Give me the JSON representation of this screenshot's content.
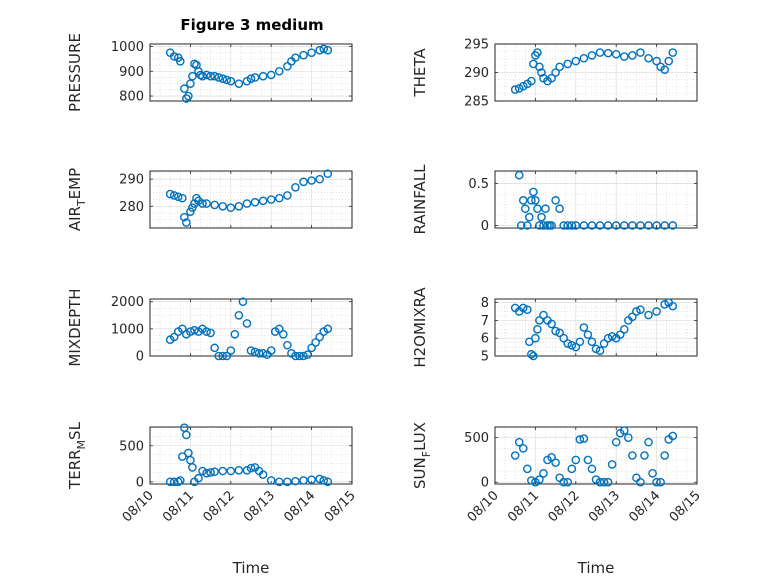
{
  "figure": {
    "title": "Figure 3 medium"
  },
  "chart_data": [
    {
      "type": "scatter",
      "ylabel": "PRESSURE",
      "ylim": [
        780,
        1010
      ],
      "yticks": [
        800,
        900,
        1000
      ],
      "xlim": [
        0,
        5
      ],
      "xticks": [],
      "color": "#0072bd",
      "x": [
        0.5,
        0.6,
        0.7,
        0.75,
        0.85,
        0.9,
        0.95,
        1.0,
        1.05,
        1.1,
        1.15,
        1.2,
        1.25,
        1.3,
        1.4,
        1.5,
        1.6,
        1.7,
        1.8,
        1.9,
        2.0,
        2.2,
        2.4,
        2.5,
        2.6,
        2.8,
        3.0,
        3.2,
        3.4,
        3.5,
        3.6,
        3.8,
        4.0,
        4.2,
        4.3,
        4.4
      ],
      "y": [
        975,
        960,
        955,
        940,
        830,
        790,
        800,
        850,
        880,
        930,
        925,
        900,
        885,
        880,
        885,
        880,
        880,
        875,
        870,
        865,
        860,
        850,
        860,
        870,
        875,
        880,
        885,
        900,
        920,
        940,
        955,
        965,
        975,
        985,
        990,
        985
      ]
    },
    {
      "type": "scatter",
      "ylabel": "THETA",
      "ylim": [
        285,
        295
      ],
      "yticks": [
        285,
        290,
        295
      ],
      "xlim": [
        0,
        5
      ],
      "xticks": [],
      "color": "#0072bd",
      "x": [
        0.5,
        0.6,
        0.7,
        0.8,
        0.9,
        0.95,
        1.0,
        1.05,
        1.1,
        1.15,
        1.2,
        1.3,
        1.4,
        1.5,
        1.6,
        1.8,
        2.0,
        2.2,
        2.4,
        2.6,
        2.8,
        3.0,
        3.2,
        3.4,
        3.6,
        3.8,
        4.0,
        4.1,
        4.2,
        4.3,
        4.4
      ],
      "y": [
        287,
        287.2,
        287.6,
        288,
        288.5,
        291.5,
        293,
        293.5,
        291,
        290,
        289,
        288.5,
        289,
        290,
        291,
        291.5,
        292,
        292.5,
        293,
        293.5,
        293.4,
        293.2,
        292.8,
        293,
        293.5,
        292.5,
        292,
        291,
        290.5,
        292,
        293.5
      ]
    },
    {
      "type": "scatter",
      "ylabel": "AIR_TEMP",
      "ylim": [
        272,
        293
      ],
      "yticks": [
        280,
        290
      ],
      "xlim": [
        0,
        5
      ],
      "xticks": [],
      "color": "#0072bd",
      "x": [
        0.5,
        0.6,
        0.7,
        0.8,
        0.85,
        0.9,
        1.0,
        1.05,
        1.1,
        1.15,
        1.2,
        1.3,
        1.4,
        1.6,
        1.8,
        2.0,
        2.2,
        2.4,
        2.6,
        2.8,
        3.0,
        3.2,
        3.4,
        3.6,
        3.8,
        4.0,
        4.2,
        4.4
      ],
      "y": [
        284.5,
        284,
        283.5,
        283,
        276,
        274,
        278,
        279.5,
        281,
        283,
        282,
        281,
        281,
        280.5,
        280,
        279.5,
        280,
        281,
        281.5,
        282,
        282.5,
        283,
        284,
        287,
        289,
        289.5,
        290,
        292
      ]
    },
    {
      "type": "scatter",
      "ylabel": "RAINFALL",
      "ylim": [
        -0.03,
        0.65
      ],
      "yticks": [
        0,
        0.5
      ],
      "xlim": [
        0,
        5
      ],
      "xticks": [],
      "color": "#0072bd",
      "x": [
        0.6,
        0.65,
        0.7,
        0.75,
        0.8,
        0.85,
        0.9,
        0.95,
        1.0,
        1.05,
        1.1,
        1.15,
        1.2,
        1.25,
        1.3,
        1.35,
        1.4,
        1.5,
        1.6,
        1.7,
        1.8,
        1.9,
        2.0,
        2.2,
        2.4,
        2.6,
        2.8,
        3.0,
        3.2,
        3.4,
        3.6,
        3.8,
        4.0,
        4.2,
        4.4
      ],
      "y": [
        0.6,
        0,
        0.3,
        0.2,
        0,
        0.1,
        0.3,
        0.4,
        0.3,
        0.2,
        0,
        0.1,
        0,
        0.2,
        0,
        0,
        0,
        0.3,
        0.2,
        0,
        0,
        0,
        0,
        0,
        0,
        0,
        0,
        0,
        0,
        0,
        0,
        0,
        0,
        0,
        0
      ]
    },
    {
      "type": "scatter",
      "ylabel": "MIXDEPTH",
      "ylim": [
        0,
        2100
      ],
      "yticks": [
        0,
        1000,
        2000
      ],
      "xlim": [
        0,
        5
      ],
      "xticks": [],
      "color": "#0072bd",
      "x": [
        0.5,
        0.6,
        0.7,
        0.8,
        0.9,
        1.0,
        1.1,
        1.2,
        1.3,
        1.4,
        1.5,
        1.6,
        1.7,
        1.8,
        1.9,
        2.0,
        2.1,
        2.2,
        2.3,
        2.4,
        2.5,
        2.6,
        2.7,
        2.8,
        2.9,
        3.0,
        3.1,
        3.2,
        3.3,
        3.4,
        3.5,
        3.6,
        3.7,
        3.8,
        3.9,
        4.0,
        4.1,
        4.2,
        4.3,
        4.4
      ],
      "y": [
        600,
        700,
        900,
        1000,
        800,
        900,
        950,
        900,
        1000,
        900,
        850,
        300,
        0,
        0,
        0,
        200,
        800,
        1500,
        2000,
        1200,
        200,
        150,
        100,
        100,
        50,
        200,
        900,
        1000,
        800,
        400,
        100,
        0,
        0,
        0,
        50,
        300,
        500,
        700,
        900,
        1000
      ]
    },
    {
      "type": "scatter",
      "ylabel": "H2OMIXRA",
      "ylim": [
        5,
        8.2
      ],
      "yticks": [
        5,
        6,
        7,
        8
      ],
      "xlim": [
        0,
        5
      ],
      "xticks": [],
      "color": "#0072bd",
      "x": [
        0.5,
        0.6,
        0.7,
        0.8,
        0.85,
        0.9,
        0.95,
        1.0,
        1.05,
        1.1,
        1.2,
        1.3,
        1.4,
        1.5,
        1.6,
        1.7,
        1.8,
        1.9,
        2.0,
        2.1,
        2.2,
        2.3,
        2.4,
        2.5,
        2.6,
        2.7,
        2.8,
        2.9,
        3.0,
        3.1,
        3.2,
        3.3,
        3.4,
        3.5,
        3.6,
        3.8,
        4.0,
        4.2,
        4.3,
        4.4
      ],
      "y": [
        7.7,
        7.5,
        7.7,
        7.6,
        5.8,
        5.1,
        5.0,
        6.0,
        6.5,
        7.0,
        7.3,
        7.0,
        6.8,
        6.4,
        6.3,
        6.0,
        5.7,
        5.6,
        5.5,
        5.8,
        6.6,
        6.2,
        5.8,
        5.4,
        5.3,
        5.7,
        6.0,
        6.1,
        6.0,
        6.2,
        6.5,
        7.0,
        7.2,
        7.5,
        7.6,
        7.3,
        7.5,
        7.9,
        8.0,
        7.8
      ]
    },
    {
      "type": "scatter",
      "ylabel": "TERR_MSL",
      "ylim": [
        -30,
        760
      ],
      "yticks": [
        0,
        500
      ],
      "xlim": [
        0,
        5
      ],
      "xticks": [
        "08/10",
        "08/11",
        "08/12",
        "08/13",
        "08/14",
        "08/15"
      ],
      "xlabel": "Time",
      "color": "#0072bd",
      "x": [
        0.5,
        0.6,
        0.7,
        0.75,
        0.8,
        0.85,
        0.9,
        0.95,
        1.0,
        1.05,
        1.1,
        1.2,
        1.3,
        1.4,
        1.5,
        1.6,
        1.8,
        2.0,
        2.2,
        2.4,
        2.5,
        2.6,
        2.7,
        2.8,
        3.0,
        3.2,
        3.4,
        3.6,
        3.8,
        4.0,
        4.2,
        4.3,
        4.4
      ],
      "y": [
        0,
        0,
        0,
        20,
        350,
        750,
        650,
        400,
        300,
        200,
        0,
        50,
        150,
        120,
        130,
        140,
        150,
        150,
        160,
        160,
        190,
        200,
        150,
        100,
        20,
        0,
        0,
        10,
        20,
        30,
        40,
        20,
        0
      ]
    },
    {
      "type": "scatter",
      "ylabel": "SUN_FLUX",
      "ylim": [
        -20,
        620
      ],
      "yticks": [
        0,
        500
      ],
      "xlim": [
        0,
        5
      ],
      "xticks": [
        "08/10",
        "08/11",
        "08/12",
        "08/13",
        "08/14",
        "08/15"
      ],
      "xlabel": "Time",
      "color": "#0072bd",
      "x": [
        0.5,
        0.6,
        0.7,
        0.8,
        0.9,
        1.0,
        1.1,
        1.2,
        1.3,
        1.4,
        1.5,
        1.6,
        1.7,
        1.8,
        1.9,
        2.0,
        2.1,
        2.2,
        2.3,
        2.4,
        2.5,
        2.6,
        2.7,
        2.8,
        2.9,
        3.0,
        3.1,
        3.2,
        3.3,
        3.4,
        3.5,
        3.6,
        3.7,
        3.8,
        3.9,
        4.0,
        4.1,
        4.2,
        4.3,
        4.4
      ],
      "y": [
        300,
        450,
        380,
        150,
        20,
        0,
        30,
        100,
        250,
        280,
        220,
        50,
        0,
        0,
        150,
        250,
        480,
        490,
        250,
        150,
        30,
        0,
        0,
        0,
        200,
        450,
        550,
        580,
        500,
        300,
        50,
        0,
        300,
        450,
        100,
        0,
        0,
        300,
        480,
        520
      ]
    }
  ]
}
